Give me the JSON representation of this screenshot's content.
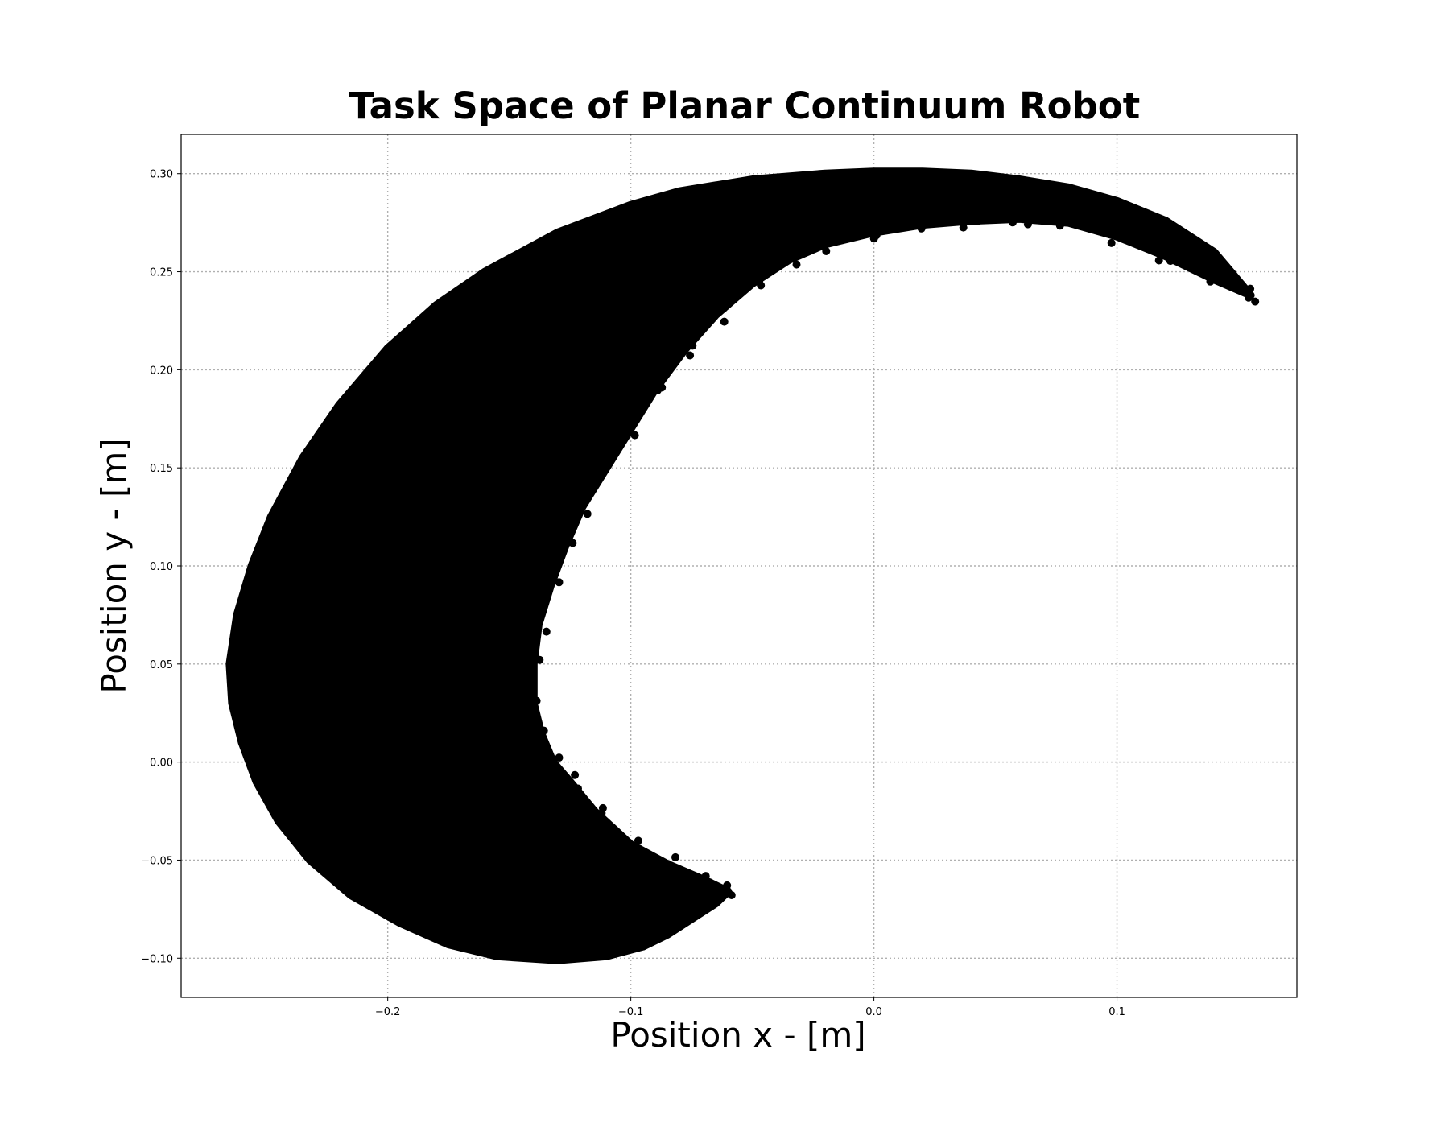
{
  "chart_data": {
    "type": "scatter",
    "title": "Task Space of Planar Continuum Robot",
    "xlabel": "Position x - [m]",
    "ylabel": "Position y - [m]",
    "xlim": [
      -0.285,
      0.174
    ],
    "ylim": [
      -0.12,
      0.32
    ],
    "x_ticks": [
      -0.2,
      -0.1,
      0.0,
      0.1
    ],
    "x_tick_labels": [
      "−0.2",
      "−0.1",
      "0.0",
      "0.1"
    ],
    "y_ticks": [
      -0.1,
      -0.05,
      0.0,
      0.05,
      0.1,
      0.15,
      0.2,
      0.25,
      0.3
    ],
    "y_tick_labels": [
      "−0.10",
      "−0.05",
      "0.00",
      "0.05",
      "0.10",
      "0.15",
      "0.20",
      "0.25",
      "0.30"
    ],
    "grid": true,
    "grid_style": "dotted",
    "marker_color": "#000000",
    "series": [
      {
        "points_description": "crescent-shaped workspace filled with dense scatter points",
        "outer_boundary": [
          [
            0.155,
            0.238
          ],
          [
            0.14,
            0.26
          ],
          [
            0.12,
            0.276
          ],
          [
            0.1,
            0.286
          ],
          [
            0.08,
            0.293
          ],
          [
            0.06,
            0.297
          ],
          [
            0.04,
            0.3
          ],
          [
            0.02,
            0.301
          ],
          [
            0.0,
            0.301
          ],
          [
            -0.02,
            0.3
          ],
          [
            -0.05,
            0.297
          ],
          [
            -0.08,
            0.291
          ],
          [
            -0.1,
            0.284
          ],
          [
            -0.13,
            0.27
          ],
          [
            -0.16,
            0.25
          ],
          [
            -0.18,
            0.233
          ],
          [
            -0.2,
            0.211
          ],
          [
            -0.22,
            0.182
          ],
          [
            -0.235,
            0.155
          ],
          [
            -0.248,
            0.125
          ],
          [
            -0.256,
            0.1
          ],
          [
            -0.262,
            0.075
          ],
          [
            -0.265,
            0.05
          ],
          [
            -0.264,
            0.03
          ],
          [
            -0.26,
            0.01
          ],
          [
            -0.254,
            -0.01
          ],
          [
            -0.245,
            -0.03
          ],
          [
            -0.232,
            -0.05
          ],
          [
            -0.215,
            -0.068
          ],
          [
            -0.195,
            -0.082
          ],
          [
            -0.175,
            -0.093
          ],
          [
            -0.155,
            -0.099
          ],
          [
            -0.13,
            -0.101
          ],
          [
            -0.11,
            -0.099
          ],
          [
            -0.095,
            -0.094
          ],
          [
            -0.085,
            -0.088
          ],
          [
            -0.075,
            -0.08
          ],
          [
            -0.065,
            -0.072
          ],
          [
            -0.06,
            -0.066
          ]
        ],
        "inner_boundary": [
          [
            -0.06,
            -0.066
          ],
          [
            -0.07,
            -0.06
          ],
          [
            -0.085,
            -0.052
          ],
          [
            -0.1,
            -0.042
          ],
          [
            -0.115,
            -0.025
          ],
          [
            -0.125,
            -0.01
          ],
          [
            -0.132,
            0.0
          ],
          [
            -0.137,
            0.015
          ],
          [
            -0.14,
            0.03
          ],
          [
            -0.14,
            0.05
          ],
          [
            -0.138,
            0.07
          ],
          [
            -0.133,
            0.09
          ],
          [
            -0.127,
            0.11
          ],
          [
            -0.12,
            0.13
          ],
          [
            -0.11,
            0.15
          ],
          [
            -0.1,
            0.17
          ],
          [
            -0.09,
            0.19
          ],
          [
            -0.078,
            0.21
          ],
          [
            -0.065,
            0.228
          ],
          [
            -0.05,
            0.244
          ],
          [
            -0.035,
            0.256
          ],
          [
            -0.02,
            0.264
          ],
          [
            0.0,
            0.27
          ],
          [
            0.02,
            0.274
          ],
          [
            0.04,
            0.276
          ],
          [
            0.06,
            0.277
          ],
          [
            0.08,
            0.275
          ],
          [
            0.1,
            0.268
          ],
          [
            0.12,
            0.258
          ],
          [
            0.14,
            0.246
          ],
          [
            0.155,
            0.238
          ]
        ]
      }
    ]
  }
}
